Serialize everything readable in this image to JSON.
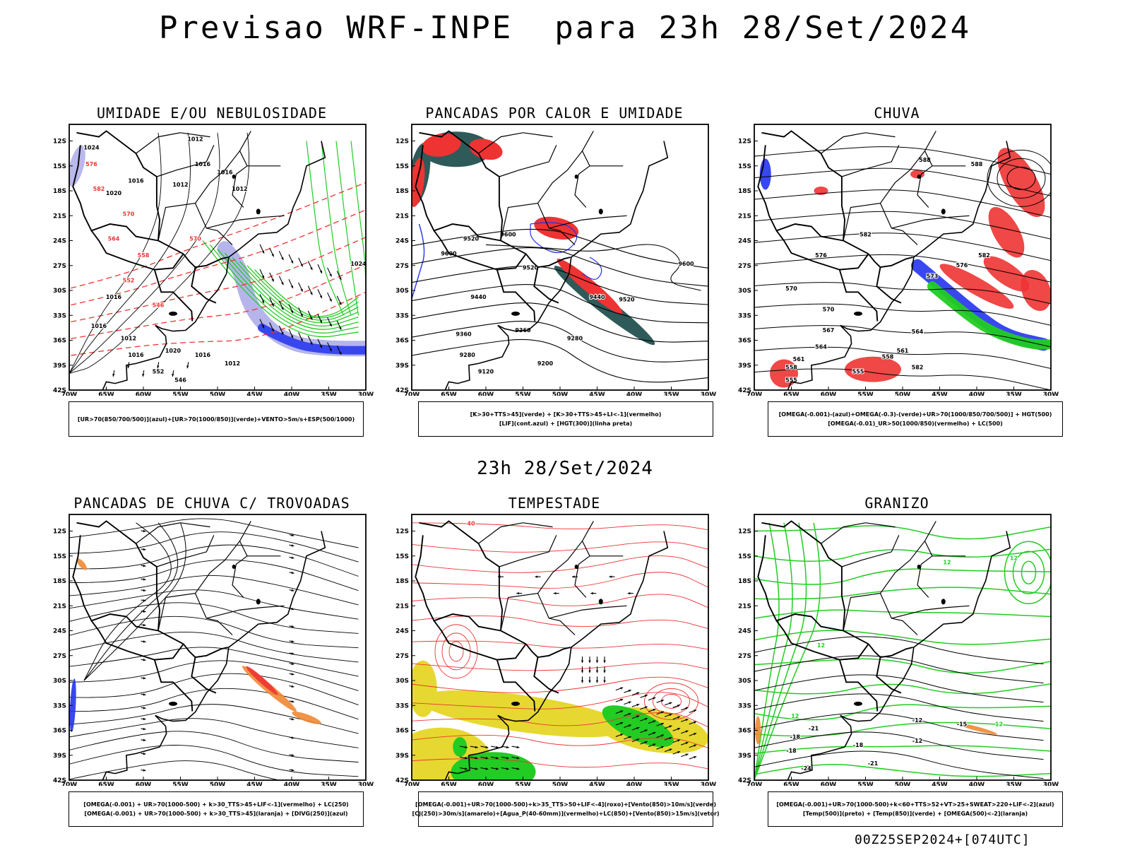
{
  "title": "Previsao WRF-INPE  para 23h 28/Set/2024",
  "mid_date": "23h 28/Set/2024",
  "footer": "00Z25SEP2024+[074UTC]",
  "lat_labels": [
    "12S",
    "15S",
    "18S",
    "21S",
    "24S",
    "27S",
    "30S",
    "33S",
    "36S",
    "39S",
    "42S"
  ],
  "lon_labels": [
    "70W",
    "65W",
    "60W",
    "55W",
    "50W",
    "45W",
    "40W",
    "35W",
    "30W"
  ],
  "colors": {
    "red": "#ee3333",
    "green": "#22cc22",
    "blue": "#2233ee",
    "dark_teal": "#2f5a5a",
    "lavender": "#a8a8e8",
    "yellow": "#e6d830",
    "orange": "#ee8833",
    "black": "#000000"
  },
  "panels": [
    {
      "title": "UMIDADE E/OU NEBULOSIDADE",
      "caption": [
        "[UR>70(850/700/500)](azul)+[UR>70(1000/850)](verde)+VENTO>5m/s+ESP(500/1000)"
      ],
      "contour_labels": [
        "1012",
        "1016",
        "1012",
        "1016",
        "1012",
        "1016",
        "1020",
        "1024",
        "570",
        "576",
        "582",
        "570",
        "564",
        "558",
        "552",
        "546",
        "1016",
        "1016",
        "1012",
        "1020",
        "1016",
        "1012",
        "1016",
        "552",
        "546",
        "1024"
      ]
    },
    {
      "title": "PANCADAS POR CALOR E UMIDADE",
      "caption": [
        "[K>30+TTS>45](verde) + [K>30+TTS>45+LI<-1](vermelho)",
        "[LIF](cont.azul) + [HGT(300)](linha preta)"
      ],
      "contour_labels": [
        "9600",
        "9520",
        "9600",
        "9520",
        "9440",
        "9440",
        "9520",
        "9360",
        "9360",
        "9280",
        "9280",
        "9200",
        "9120",
        "9600"
      ]
    },
    {
      "title": "CHUVA",
      "caption": [
        "[OMEGA(-0.001)-(azul)+OMEGA(-0.3)-(verde)+UR>70(1000/850/700/500)] + HGT(500)",
        "[OMEGA(-0.01)_UR>50(1000/850)(vermelho) + LC(500)"
      ],
      "contour_labels": [
        "588",
        "582",
        "576",
        "570",
        "564",
        "561",
        "558",
        "555",
        "582",
        "588",
        "582",
        "576",
        "573",
        "570",
        "567",
        "564",
        "561",
        "558",
        "555"
      ]
    },
    {
      "title": "PANCADAS DE CHUVA C/ TROVOADAS",
      "caption": [
        "[OMEGA(-0.001) + UR>70(1000-500) + k>30_TTS>45+LIF<-1](vermelho) + LC(250)",
        "[OMEGA(-0.001) + UR>70(1000-500) + k>30_TTS>45](laranja) + [DIVG(250)](azul)"
      ],
      "contour_labels": []
    },
    {
      "title": "TEMPESTADE",
      "caption": [
        "[OMEGA(-0.001)+UR>70(1000-500)+k>35_TTS>50+LIF<-4](roxo)+[Vento(850)>10m/s](verde)",
        "[CJ(250)>30m/s](amarelo)+[Agua_P(40-60mm)](vermelho)+LC(850)+[Vento(850)>15m/s](vetor)"
      ],
      "contour_labels": [
        "40"
      ]
    },
    {
      "title": "GRANIZO",
      "caption": [
        "[OMEGA(-0.001)+UR>70(1000-500)+k<60+TTS>52+VT>25+SWEAT>220+LIF<-2](azul)",
        "[Temp(500)](preto) + [Temp(850)](verde) + [OMEGA(500)<-2](laranja)"
      ],
      "contour_labels": [
        "12",
        "12",
        "12",
        "12",
        "12",
        "-12",
        "-18",
        "-15",
        "-12",
        "-18",
        "-21",
        "-24",
        "-21",
        "-18"
      ]
    }
  ]
}
